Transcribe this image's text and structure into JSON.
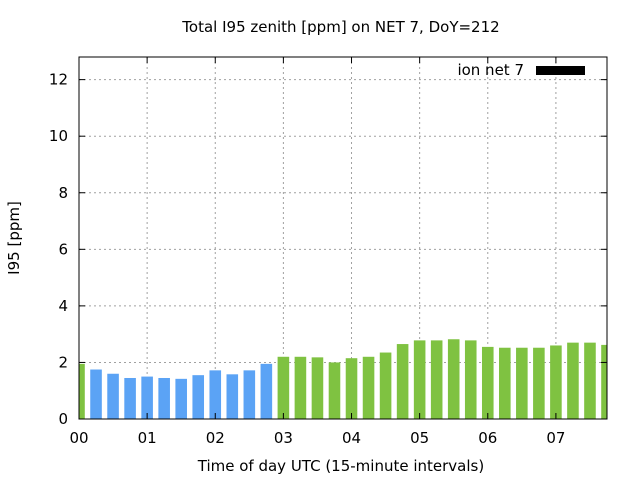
{
  "chart_data": {
    "type": "bar",
    "title": "Total I95 zenith [ppm] on NET 7, DoY=212",
    "xlabel": "Time of day UTC (15-minute intervals)",
    "ylabel": "I95 [ppm]",
    "xlim": [
      0,
      7.75
    ],
    "ylim": [
      0,
      12.8
    ],
    "xticks": [
      {
        "value": 0,
        "label": "00"
      },
      {
        "value": 1,
        "label": "01"
      },
      {
        "value": 2,
        "label": "02"
      },
      {
        "value": 3,
        "label": "03"
      },
      {
        "value": 4,
        "label": "04"
      },
      {
        "value": 5,
        "label": "05"
      },
      {
        "value": 6,
        "label": "06"
      },
      {
        "value": 7,
        "label": "07"
      }
    ],
    "yticks": [
      {
        "value": 0,
        "label": "0"
      },
      {
        "value": 2,
        "label": "2"
      },
      {
        "value": 4,
        "label": "4"
      },
      {
        "value": 6,
        "label": "6"
      },
      {
        "value": 8,
        "label": "8"
      },
      {
        "value": 10,
        "label": "10"
      },
      {
        "value": 12,
        "label": "12"
      }
    ],
    "grid": true,
    "legend": {
      "label": "ion net 7",
      "color": "#000000",
      "position": "top-right"
    },
    "bar_width_hours": 0.17,
    "colors": {
      "early": "#5ba3f5",
      "late": "#7fc241"
    },
    "bars": [
      {
        "x": 0.0,
        "value": 1.95,
        "group": "late"
      },
      {
        "x": 0.25,
        "value": 1.75,
        "group": "early"
      },
      {
        "x": 0.5,
        "value": 1.6,
        "group": "early"
      },
      {
        "x": 0.75,
        "value": 1.45,
        "group": "early"
      },
      {
        "x": 1.0,
        "value": 1.5,
        "group": "early"
      },
      {
        "x": 1.25,
        "value": 1.45,
        "group": "early"
      },
      {
        "x": 1.5,
        "value": 1.42,
        "group": "early"
      },
      {
        "x": 1.75,
        "value": 1.55,
        "group": "early"
      },
      {
        "x": 2.0,
        "value": 1.72,
        "group": "early"
      },
      {
        "x": 2.25,
        "value": 1.58,
        "group": "early"
      },
      {
        "x": 2.5,
        "value": 1.72,
        "group": "early"
      },
      {
        "x": 2.75,
        "value": 1.95,
        "group": "early"
      },
      {
        "x": 3.0,
        "value": 2.2,
        "group": "late"
      },
      {
        "x": 3.25,
        "value": 2.2,
        "group": "late"
      },
      {
        "x": 3.5,
        "value": 2.18,
        "group": "late"
      },
      {
        "x": 3.75,
        "value": 2.0,
        "group": "late"
      },
      {
        "x": 4.0,
        "value": 2.15,
        "group": "late"
      },
      {
        "x": 4.25,
        "value": 2.2,
        "group": "late"
      },
      {
        "x": 4.5,
        "value": 2.35,
        "group": "late"
      },
      {
        "x": 4.75,
        "value": 2.65,
        "group": "late"
      },
      {
        "x": 5.0,
        "value": 2.78,
        "group": "late"
      },
      {
        "x": 5.25,
        "value": 2.78,
        "group": "late"
      },
      {
        "x": 5.5,
        "value": 2.82,
        "group": "late"
      },
      {
        "x": 5.75,
        "value": 2.78,
        "group": "late"
      },
      {
        "x": 6.0,
        "value": 2.55,
        "group": "late"
      },
      {
        "x": 6.25,
        "value": 2.52,
        "group": "late"
      },
      {
        "x": 6.5,
        "value": 2.52,
        "group": "late"
      },
      {
        "x": 6.75,
        "value": 2.52,
        "group": "late"
      },
      {
        "x": 7.0,
        "value": 2.6,
        "group": "late"
      },
      {
        "x": 7.25,
        "value": 2.7,
        "group": "late"
      },
      {
        "x": 7.5,
        "value": 2.7,
        "group": "late"
      },
      {
        "x": 7.75,
        "value": 2.62,
        "group": "late"
      }
    ]
  }
}
